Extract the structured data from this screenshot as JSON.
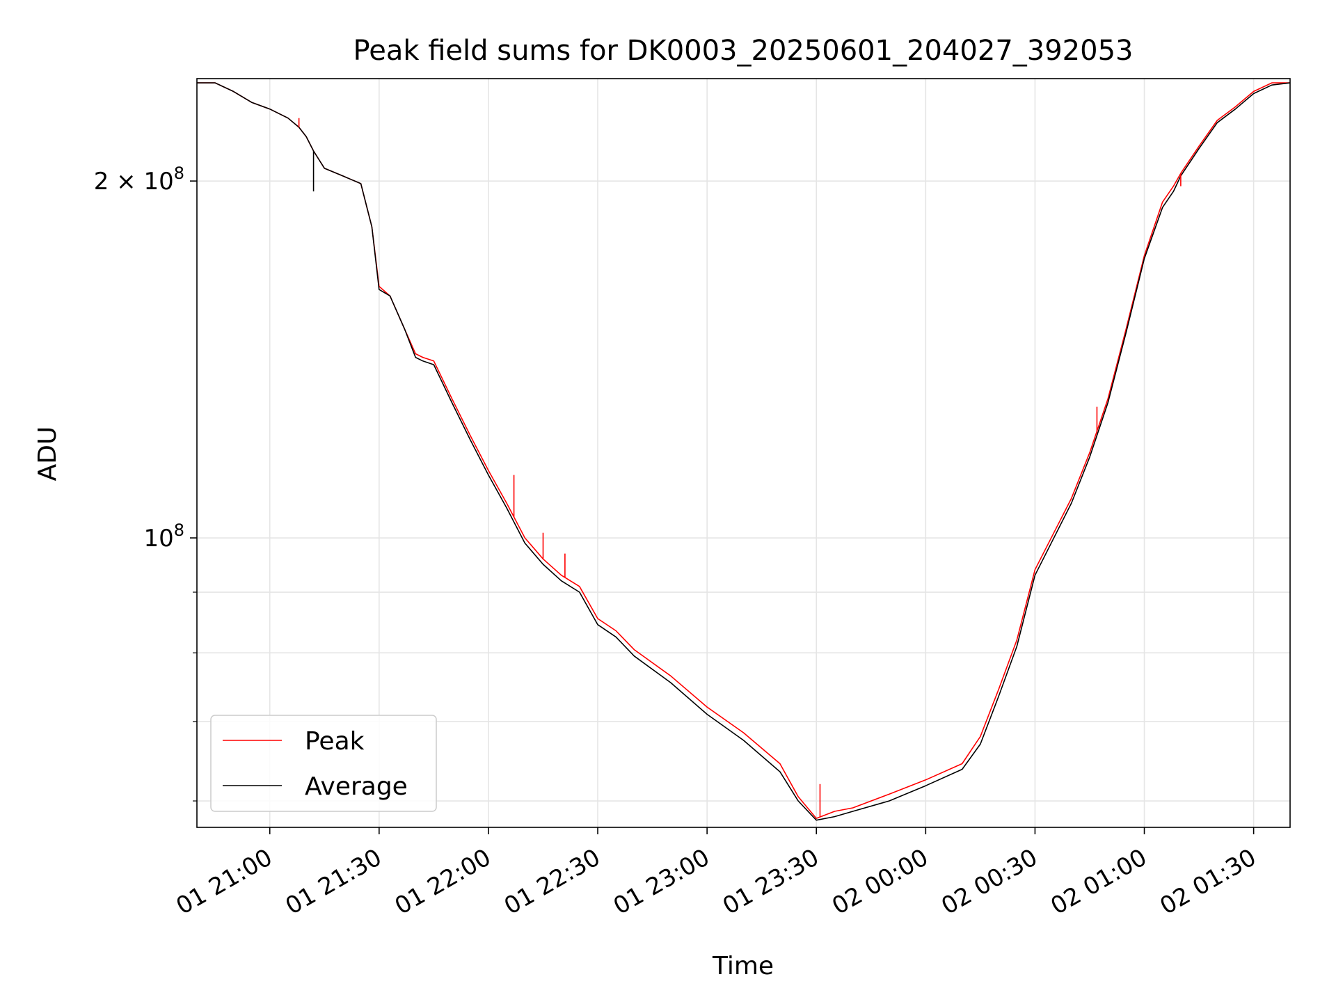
{
  "chart_data": {
    "type": "line",
    "title": "Peak field sums for DK0003_20250601_204027_392053",
    "xlabel": "Time",
    "ylabel": "ADU",
    "yscale": "log",
    "grid": true,
    "legend_position": "lower-left",
    "xlim": [
      "2025-06-01 20:40",
      "2025-06-02 01:40"
    ],
    "ylim": [
      57000000,
      244000000
    ],
    "x_ticks": [
      {
        "t": "2025-06-01 21:00",
        "label": "01 21:00"
      },
      {
        "t": "2025-06-01 21:30",
        "label": "01 21:30"
      },
      {
        "t": "2025-06-01 22:00",
        "label": "01 22:00"
      },
      {
        "t": "2025-06-01 22:30",
        "label": "01 22:30"
      },
      {
        "t": "2025-06-01 23:00",
        "label": "01 23:00"
      },
      {
        "t": "2025-06-01 23:30",
        "label": "01 23:30"
      },
      {
        "t": "2025-06-02 00:00",
        "label": "02 00:00"
      },
      {
        "t": "2025-06-02 00:30",
        "label": "02 00:30"
      },
      {
        "t": "2025-06-02 01:00",
        "label": "02 01:00"
      },
      {
        "t": "2025-06-02 01:30",
        "label": "02 01:30"
      }
    ],
    "y_major_ticks": [
      {
        "value": 100000000,
        "base": "10",
        "exp": "8",
        "coef": ""
      },
      {
        "value": 200000000,
        "base": "10",
        "exp": "8",
        "coef": "2 × "
      }
    ],
    "y_minor_ticks": [
      60000000,
      70000000,
      80000000,
      90000000
    ],
    "x": [
      "2025-06-01 20:40",
      "2025-06-01 20:45",
      "2025-06-01 20:50",
      "2025-06-01 20:55",
      "2025-06-01 21:00",
      "2025-06-01 21:05",
      "2025-06-01 21:08",
      "2025-06-01 21:10",
      "2025-06-01 21:12",
      "2025-06-01 21:15",
      "2025-06-01 21:20",
      "2025-06-01 21:25",
      "2025-06-01 21:28",
      "2025-06-01 21:30",
      "2025-06-01 21:33",
      "2025-06-01 21:37",
      "2025-06-01 21:40",
      "2025-06-01 21:42",
      "2025-06-01 21:45",
      "2025-06-01 21:50",
      "2025-06-01 21:55",
      "2025-06-01 22:00",
      "2025-06-01 22:05",
      "2025-06-01 22:10",
      "2025-06-01 22:15",
      "2025-06-01 22:20",
      "2025-06-01 22:25",
      "2025-06-01 22:30",
      "2025-06-01 22:35",
      "2025-06-01 22:40",
      "2025-06-01 22:50",
      "2025-06-01 23:00",
      "2025-06-01 23:10",
      "2025-06-01 23:20",
      "2025-06-01 23:25",
      "2025-06-01 23:30",
      "2025-06-01 23:35",
      "2025-06-01 23:40",
      "2025-06-01 23:50",
      "2025-06-02 00:00",
      "2025-06-02 00:10",
      "2025-06-02 00:15",
      "2025-06-02 00:20",
      "2025-06-02 00:25",
      "2025-06-02 00:30",
      "2025-06-02 00:40",
      "2025-06-02 00:45",
      "2025-06-02 00:50",
      "2025-06-02 00:55",
      "2025-06-02 01:00",
      "2025-06-02 01:05",
      "2025-06-02 01:08",
      "2025-06-02 01:10",
      "2025-06-02 01:15",
      "2025-06-02 01:20",
      "2025-06-02 01:25",
      "2025-06-02 01:30",
      "2025-06-02 01:35",
      "2025-06-02 01:40"
    ],
    "series": [
      {
        "name": "Peak",
        "color": "#ff0000",
        "values": [
          242000000,
          242000000,
          238000000,
          233000000,
          230000000,
          226000000,
          222000000,
          218000000,
          212000000,
          205000000,
          202000000,
          199000000,
          183000000,
          163000000,
          160000000,
          150000000,
          143000000,
          142000000,
          141000000,
          131000000,
          122000000,
          114000000,
          107000000,
          100000000,
          96000000,
          93000000,
          91000000,
          85500000,
          83500000,
          80500000,
          76500000,
          72000000,
          68500000,
          64500000,
          60500000,
          58000000,
          58800000,
          59200000,
          60800000,
          62500000,
          64500000,
          68000000,
          74500000,
          82000000,
          94000000,
          108000000,
          118000000,
          131000000,
          150000000,
          173000000,
          192000000,
          198000000,
          203000000,
          214000000,
          225000000,
          231000000,
          238000000,
          242000000,
          242000000
        ]
      },
      {
        "name": "Average",
        "color": "#000000",
        "values": [
          242000000,
          242000000,
          238000000,
          233000000,
          230000000,
          226000000,
          222000000,
          218000000,
          212000000,
          205000000,
          202000000,
          199000000,
          183000000,
          162000000,
          160000000,
          150000000,
          142000000,
          141000000,
          140000000,
          130000000,
          121000000,
          113000000,
          106000000,
          99000000,
          95000000,
          92000000,
          90000000,
          84500000,
          82500000,
          79500000,
          75500000,
          71000000,
          67500000,
          63500000,
          60000000,
          57800000,
          58200000,
          58800000,
          60000000,
          61800000,
          63800000,
          67000000,
          73500000,
          81000000,
          93000000,
          107000000,
          117000000,
          130000000,
          149000000,
          172000000,
          190000000,
          196000000,
          202000000,
          213000000,
          224000000,
          230000000,
          237000000,
          241000000,
          242000000
        ]
      }
    ],
    "spikes": [
      {
        "series": "Average",
        "x": "2025-06-01 21:12",
        "value": 196000000
      },
      {
        "series": "Peak",
        "x": "2025-06-01 21:08",
        "value": 226000000
      },
      {
        "series": "Peak",
        "x": "2025-06-01 22:07",
        "value": 113000000
      },
      {
        "series": "Peak",
        "x": "2025-06-01 22:15",
        "value": 101000000
      },
      {
        "series": "Peak",
        "x": "2025-06-01 22:21",
        "value": 97000000
      },
      {
        "series": "Peak",
        "x": "2025-06-01 23:31",
        "value": 62000000
      },
      {
        "series": "Peak",
        "x": "2025-06-02 00:47",
        "value": 129000000
      },
      {
        "series": "Peak",
        "x": "2025-06-02 01:10",
        "value": 198000000
      }
    ]
  }
}
